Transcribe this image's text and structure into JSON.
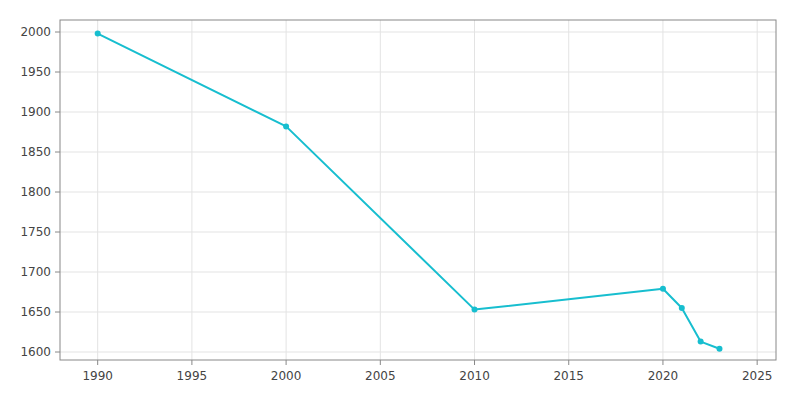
{
  "chart_data": {
    "type": "line",
    "x": [
      1990,
      2000,
      2010,
      2020,
      2021,
      2022,
      2023
    ],
    "values": [
      1998,
      1882,
      1653,
      1679,
      1655,
      1613,
      1604
    ],
    "color": "#17becf",
    "marker": "circle",
    "xlim": [
      1988,
      2026
    ],
    "xticks": [
      1990,
      1995,
      2000,
      2005,
      2010,
      2015,
      2020,
      2025
    ],
    "ylim": [
      1590,
      2015
    ],
    "yticks": [
      1600,
      1650,
      1700,
      1750,
      1800,
      1850,
      1900,
      1950,
      2000
    ],
    "grid": true
  }
}
